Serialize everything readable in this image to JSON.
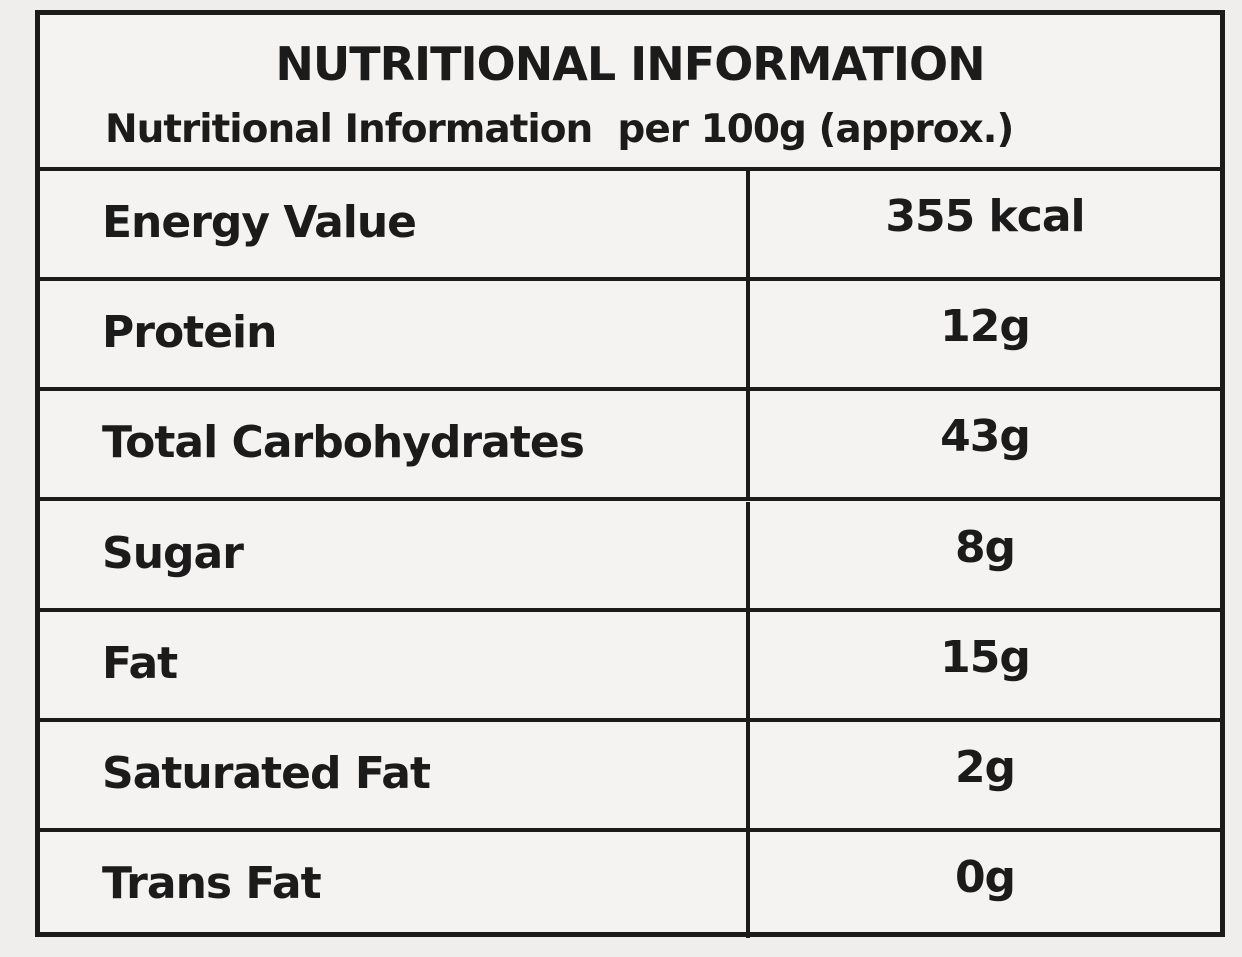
{
  "header": {
    "title": "NUTRITIONAL INFORMATION",
    "subtitle": "Nutritional Information  per 100g (approx.)"
  },
  "table": {
    "rows": [
      [
        "Energy Value",
        "355 kcal"
      ],
      [
        "Protein",
        "12g"
      ],
      [
        "Total Carbohydrates",
        "43g"
      ],
      [
        "Sugar",
        "8g"
      ],
      [
        "Fat",
        "15g"
      ],
      [
        "Saturated Fat",
        "2g"
      ],
      [
        "Trans Fat",
        "0g"
      ]
    ]
  }
}
